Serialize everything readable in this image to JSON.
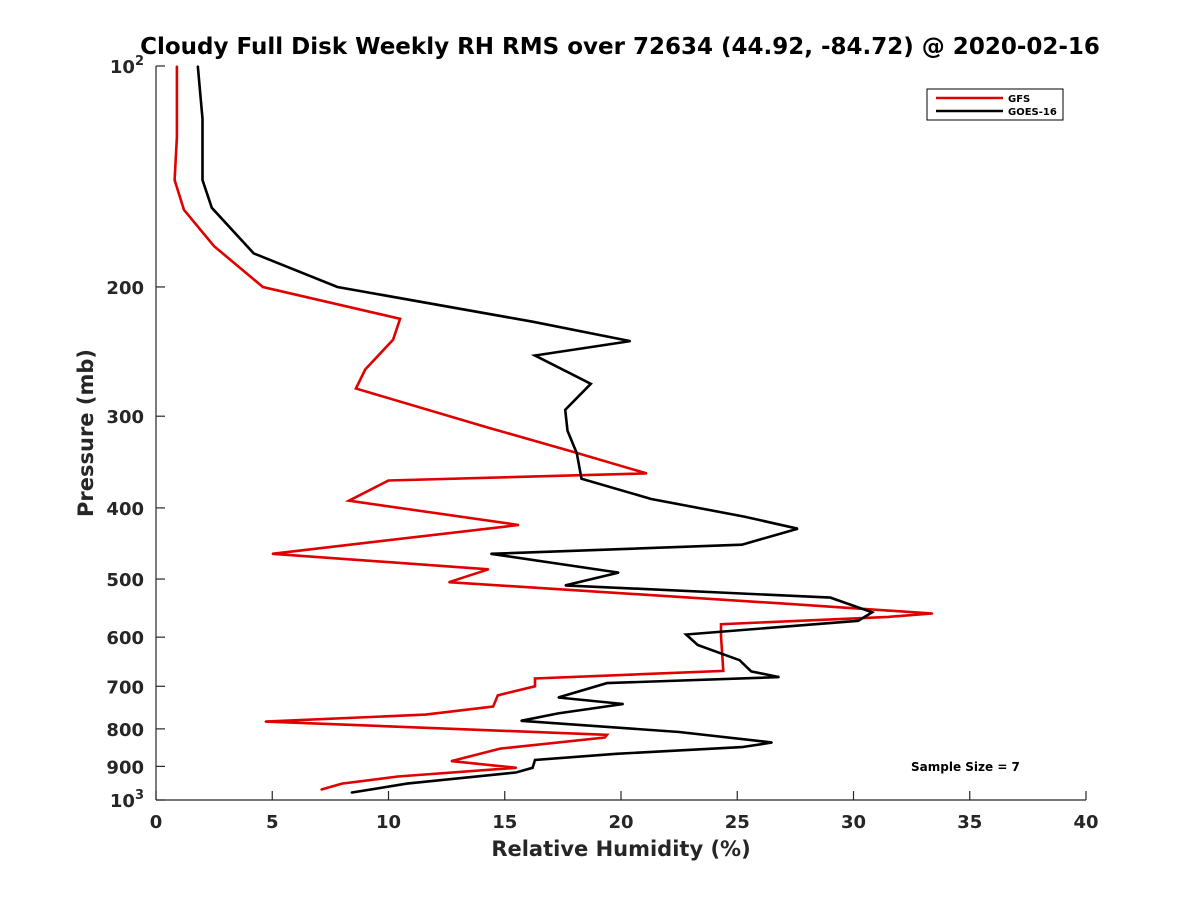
{
  "chart_data": {
    "type": "line",
    "title": "Cloudy Full Disk Weekly RH RMS over 72634 (44.92, -84.72) @ 2020-02-16",
    "xlabel": "Relative Humidity (%)",
    "ylabel": "Pressure (mb)",
    "xlim": [
      0,
      40
    ],
    "ylim": [
      100,
      1000
    ],
    "y_scale": "log",
    "y_reversed": true,
    "x_ticks": [
      "0",
      "5",
      "10",
      "15",
      "20",
      "25",
      "30",
      "35",
      "40"
    ],
    "y_ticks": [
      {
        "value": 100,
        "base": "10",
        "exp": "2"
      },
      {
        "value": 200,
        "label": "200"
      },
      {
        "value": 300,
        "label": "300"
      },
      {
        "value": 400,
        "label": "400"
      },
      {
        "value": 500,
        "label": "500"
      },
      {
        "value": 600,
        "label": "600"
      },
      {
        "value": 700,
        "label": "700"
      },
      {
        "value": 800,
        "label": "800"
      },
      {
        "value": 900,
        "label": "900"
      },
      {
        "value": 1000,
        "base": "10",
        "exp": "3"
      }
    ],
    "legend_position": "top-right",
    "annotation": "Sample Size = 7",
    "series": [
      {
        "name": "GFS",
        "color": "#e00000",
        "x": [
          0.9,
          0.9,
          0.8,
          1.2,
          2.5,
          4.6,
          10.5,
          10.2,
          9.0,
          8.6,
          14.3,
          18.0,
          21.1,
          10.0,
          8.3,
          15.6,
          5.0,
          14.3,
          12.6,
          27.0,
          33.4,
          31.5,
          24.3,
          24.3,
          24.4,
          16.3,
          16.3,
          14.7,
          14.5,
          11.6,
          4.7,
          19.4,
          19.3,
          14.8,
          12.7,
          15.5,
          10.4,
          8.0,
          7.1
        ],
        "y": [
          100,
          125,
          143,
          157,
          176,
          200,
          221,
          236,
          259,
          275,
          311,
          336,
          359,
          367,
          391,
          422,
          462,
          485,
          505,
          540,
          557,
          563,
          576,
          598,
          667,
          683,
          700,
          720,
          746,
          765,
          782,
          815,
          822,
          851,
          885,
          904,
          929,
          950,
          968
        ]
      },
      {
        "name": "GOES-16",
        "color": "#000000",
        "x": [
          1.8,
          2.0,
          2.0,
          2.4,
          4.2,
          7.8,
          16.2,
          20.4,
          16.3,
          18.7,
          17.6,
          17.7,
          18.1,
          18.3,
          21.3,
          25.3,
          27.6,
          25.2,
          14.4,
          19.9,
          17.6,
          29.0,
          30.8,
          30.2,
          22.8,
          23.3,
          25.1,
          25.6,
          26.8,
          19.4,
          17.3,
          20.1,
          17.3,
          15.7,
          22.5,
          26.5,
          25.2,
          19.8,
          16.3,
          16.2,
          15.5,
          10.8,
          8.4
        ],
        "y": [
          100,
          118,
          143,
          156,
          180,
          200,
          223,
          237,
          248,
          271,
          294,
          314,
          337,
          365,
          389,
          411,
          427,
          449,
          462,
          490,
          510,
          530,
          555,
          570,
          595,
          615,
          645,
          668,
          680,
          693,
          725,
          740,
          762,
          780,
          808,
          835,
          847,
          865,
          882,
          904,
          917,
          950,
          977
        ]
      }
    ]
  }
}
